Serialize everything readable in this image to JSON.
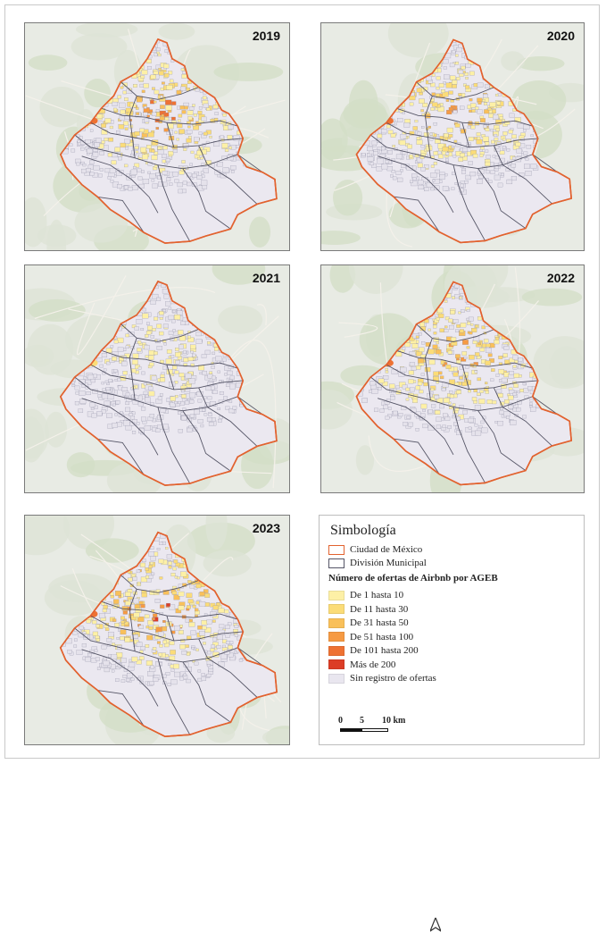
{
  "panels": [
    {
      "year": "2019",
      "intensity": 0.85
    },
    {
      "year": "2020",
      "intensity": 0.75
    },
    {
      "year": "2021",
      "intensity": 0.3
    },
    {
      "year": "2022",
      "intensity": 0.8
    },
    {
      "year": "2023",
      "intensity": 1.0
    }
  ],
  "legend": {
    "title": "Simbología",
    "boundary_city": "Ciudad de México",
    "boundary_municipal": "División Municipal",
    "subtitle": "Número de ofertas de Airbnb por AGEB",
    "classes": [
      {
        "label": "De 1 hasta 10",
        "color": "#fdf0a6"
      },
      {
        "label": "De 11 hasta 30",
        "color": "#fbdc78"
      },
      {
        "label": "De 31 hasta 50",
        "color": "#f9c05a"
      },
      {
        "label": "De 51 hasta 100",
        "color": "#f69a43"
      },
      {
        "label": "De 101 hasta 200",
        "color": "#ee7233"
      },
      {
        "label": "Más de 200",
        "color": "#dc3d26"
      },
      {
        "label": "Sin registro de ofertas",
        "color": "#e9e6ef"
      }
    ],
    "city_border_color": "#e2622f",
    "municipal_border_color": "#555566"
  },
  "scale": {
    "tick0": "0",
    "tick1": "5",
    "tick2": "10 km"
  },
  "north_icon": "north-arrow-icon"
}
